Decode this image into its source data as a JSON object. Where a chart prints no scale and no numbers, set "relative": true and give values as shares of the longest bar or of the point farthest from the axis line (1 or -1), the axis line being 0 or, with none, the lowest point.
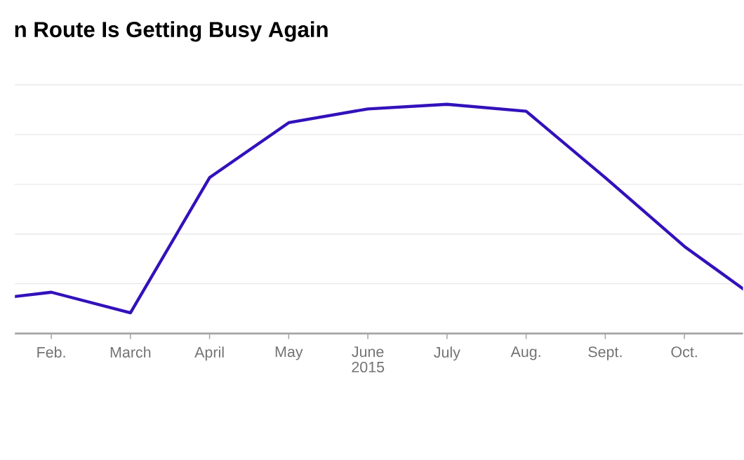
{
  "chart_data": {
    "type": "line",
    "title": "n Route Is Getting Busy Again",
    "xlabel": "2015",
    "categories": [
      null,
      "Feb.",
      "March",
      "April",
      "May",
      "June",
      "July",
      "Aug.",
      "Sept.",
      "Oct.",
      null
    ],
    "values": [
      0.14,
      0.18,
      0.09,
      0.68,
      0.92,
      0.98,
      1,
      0.97,
      0.68,
      0.38,
      0.13
    ],
    "color": "#3311bb",
    "relative": true,
    "grid": "y",
    "marker": "none",
    "line_style": "solid"
  }
}
